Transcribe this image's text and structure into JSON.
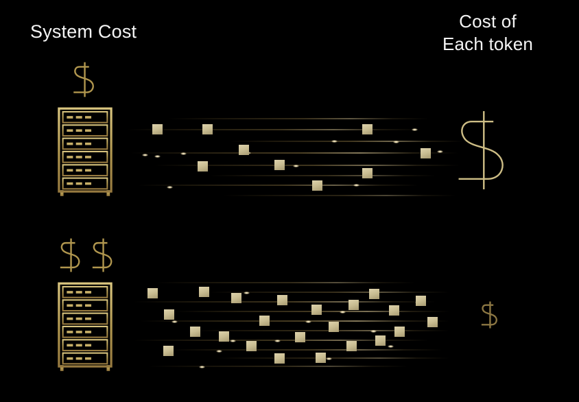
{
  "diagram": {
    "title_left": "System Cost",
    "title_right_line1": "Cost of",
    "title_right_line2": "Each token",
    "colors": {
      "background": "#000000",
      "text": "#f4f4f4",
      "gold": "#b0964e",
      "gold_bright": "#cdbd85",
      "gold_dim": "#8c7743",
      "token_hi": "#ded3ad",
      "token_lo": "#a89b72",
      "streak": "#c3a45c",
      "glint": "#fff6dc"
    },
    "rows": [
      {
        "id": "low-system-cost",
        "system_dollars": 1,
        "per_token_dollar": "large",
        "tokens": [
          [
            37,
            23
          ],
          [
            110,
            23
          ],
          [
            163,
            53
          ],
          [
            103,
            77
          ],
          [
            215,
            75
          ],
          [
            270,
            105
          ],
          [
            343,
            23
          ],
          [
            343,
            87
          ],
          [
            428,
            58
          ]
        ],
        "streaks": [
          [
            60,
            14,
            380,
            0.5
          ],
          [
            0,
            30,
            430,
            0.55
          ],
          [
            150,
            47,
            340,
            0.6
          ],
          [
            5,
            64,
            478,
            0.7
          ],
          [
            40,
            82,
            445,
            0.6
          ],
          [
            120,
            97,
            330,
            0.45
          ],
          [
            15,
            111,
            410,
            0.55
          ],
          [
            140,
            126,
            340,
            0.4
          ]
        ],
        "glints": [
          [
            298,
            46
          ],
          [
            78,
            64
          ],
          [
            172,
            63
          ],
          [
            415,
            29
          ],
          [
            388,
            47
          ],
          [
            242,
            82
          ],
          [
            452,
            61
          ],
          [
            330,
            110
          ],
          [
            58,
            113
          ],
          [
            22,
            66
          ],
          [
            40,
            68
          ]
        ]
      },
      {
        "id": "high-system-cost",
        "system_dollars": 2,
        "per_token_dollar": "small",
        "tokens": [
          [
            20,
            17
          ],
          [
            95,
            15
          ],
          [
            142,
            24
          ],
          [
            209,
            27
          ],
          [
            44,
            48
          ],
          [
            183,
            57
          ],
          [
            82,
            73
          ],
          [
            124,
            80
          ],
          [
            164,
            94
          ],
          [
            43,
            101
          ],
          [
            205,
            112
          ],
          [
            343,
            18
          ],
          [
            411,
            28
          ],
          [
            259,
            41
          ],
          [
            313,
            34
          ],
          [
            372,
            42
          ],
          [
            428,
            59
          ],
          [
            284,
            66
          ],
          [
            380,
            73
          ],
          [
            235,
            81
          ],
          [
            352,
            86
          ],
          [
            310,
            94
          ],
          [
            265,
            111
          ]
        ],
        "streaks": [
          [
            30,
            8,
            380,
            0.45
          ],
          [
            110,
            22,
            350,
            0.5
          ],
          [
            0,
            36,
            440,
            0.6
          ],
          [
            60,
            50,
            400,
            0.65
          ],
          [
            10,
            64,
            450,
            0.7
          ],
          [
            90,
            78,
            370,
            0.55
          ],
          [
            0,
            92,
            430,
            0.6
          ],
          [
            50,
            106,
            400,
            0.55
          ],
          [
            120,
            118,
            340,
            0.45
          ],
          [
            20,
            130,
            380,
            0.4
          ]
        ],
        "glints": [
          [
            250,
            64
          ],
          [
            300,
            50
          ],
          [
            205,
            92
          ],
          [
            120,
            107
          ],
          [
            345,
            78
          ],
          [
            55,
            64
          ],
          [
            410,
            36
          ],
          [
            160,
            22
          ],
          [
            280,
            118
          ],
          [
            95,
            130
          ],
          [
            370,
            100
          ],
          [
            430,
            64
          ],
          [
            140,
            92
          ]
        ]
      }
    ]
  }
}
